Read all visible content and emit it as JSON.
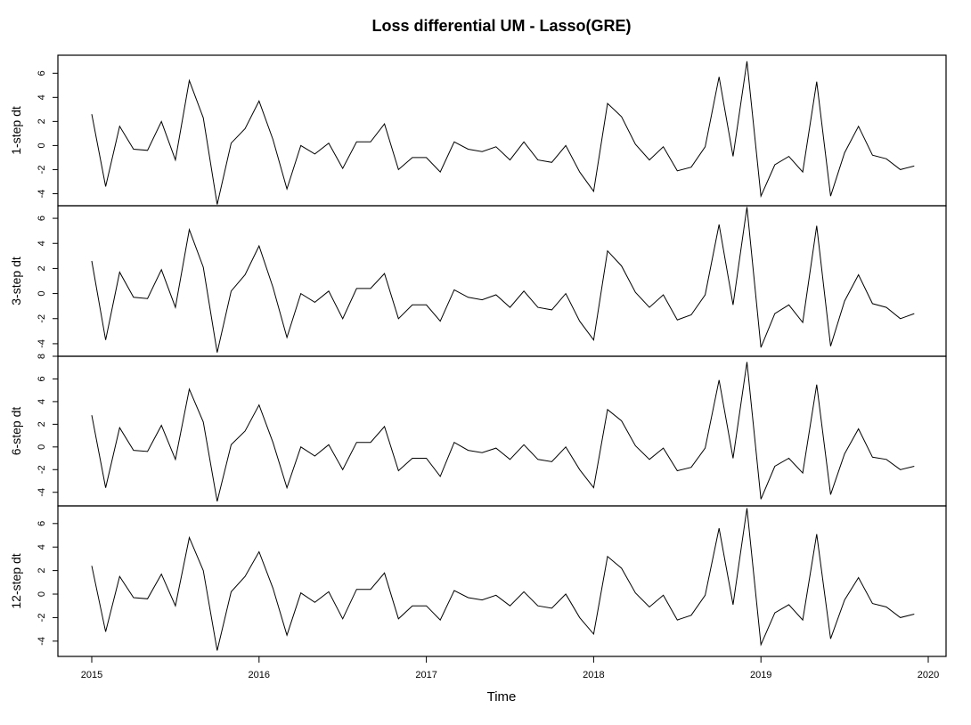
{
  "chart_data": {
    "type": "line",
    "title": "Loss differential UM - Lasso(GRE)",
    "xlabel": "Time",
    "x_start": 2015,
    "x_step": 0.08333333,
    "xlim": [
      2015,
      2020
    ],
    "x_ticks": [
      2015,
      2016,
      2017,
      2018,
      2019,
      2020
    ],
    "x_tick_labels": [
      "2015",
      "2016",
      "2017",
      "2018",
      "2019",
      "2020"
    ],
    "panels": [
      {
        "ylabel": "1-step dt",
        "ylim": [
          -5,
          7.5
        ],
        "y_ticks": [
          -4,
          -2,
          0,
          2,
          4,
          6
        ],
        "y_tick_labels": [
          "-4",
          "-2",
          "0",
          "2",
          "4",
          "6"
        ],
        "values": [
          2.6,
          -3.4,
          1.6,
          -0.3,
          -0.4,
          2.0,
          -1.2,
          5.4,
          2.3,
          -4.9,
          0.2,
          1.4,
          3.7,
          0.5,
          -3.6,
          0.0,
          -0.7,
          0.2,
          -1.9,
          0.3,
          0.3,
          1.8,
          -2.0,
          -1.0,
          -1.0,
          -2.2,
          0.3,
          -0.3,
          -0.5,
          -0.1,
          -1.2,
          0.3,
          -1.2,
          -1.4,
          0.0,
          -2.2,
          -3.8,
          3.5,
          2.4,
          0.1,
          -1.2,
          -0.1,
          -2.1,
          -1.8,
          -0.1,
          5.7,
          -0.9,
          7.0,
          -4.2,
          -1.6,
          -0.9,
          -2.2,
          5.3,
          -4.2,
          -0.6,
          1.6,
          -0.8,
          -1.1,
          -2.0,
          -1.7
        ]
      },
      {
        "ylabel": "3-step dt",
        "ylim": [
          -5,
          7
        ],
        "y_ticks": [
          -4,
          -2,
          0,
          2,
          4,
          6
        ],
        "y_tick_labels": [
          "-4",
          "-2",
          "0",
          "2",
          "4",
          "6"
        ],
        "values": [
          2.6,
          -3.7,
          1.7,
          -0.3,
          -0.4,
          1.9,
          -1.1,
          5.1,
          2.1,
          -4.7,
          0.2,
          1.5,
          3.8,
          0.5,
          -3.5,
          0.0,
          -0.7,
          0.2,
          -2.0,
          0.4,
          0.4,
          1.6,
          -2.0,
          -0.9,
          -0.9,
          -2.2,
          0.3,
          -0.3,
          -0.5,
          -0.1,
          -1.1,
          0.2,
          -1.1,
          -1.3,
          0.0,
          -2.2,
          -3.7,
          3.4,
          2.2,
          0.1,
          -1.1,
          -0.1,
          -2.1,
          -1.7,
          -0.1,
          5.5,
          -0.9,
          6.9,
          -4.3,
          -1.6,
          -0.9,
          -2.3,
          5.4,
          -4.2,
          -0.6,
          1.5,
          -0.8,
          -1.1,
          -2.0,
          -1.6
        ]
      },
      {
        "ylabel": "6-step dt",
        "ylim": [
          -5.2,
          8
        ],
        "y_ticks": [
          -4,
          -2,
          0,
          2,
          4,
          6,
          8
        ],
        "y_tick_labels": [
          "-4",
          "-2",
          "0",
          "2",
          "4",
          "6",
          "8"
        ],
        "values": [
          2.8,
          -3.6,
          1.7,
          -0.3,
          -0.4,
          1.9,
          -1.1,
          5.1,
          2.2,
          -4.8,
          0.2,
          1.4,
          3.7,
          0.4,
          -3.6,
          0.0,
          -0.8,
          0.2,
          -2.0,
          0.4,
          0.4,
          1.8,
          -2.1,
          -1.0,
          -1.0,
          -2.6,
          0.4,
          -0.3,
          -0.5,
          -0.1,
          -1.1,
          0.2,
          -1.1,
          -1.3,
          0.0,
          -2.0,
          -3.6,
          3.3,
          2.3,
          0.1,
          -1.1,
          -0.1,
          -2.1,
          -1.8,
          -0.1,
          5.9,
          -1.0,
          7.5,
          -4.6,
          -1.7,
          -1.0,
          -2.3,
          5.5,
          -4.2,
          -0.6,
          1.6,
          -0.9,
          -1.1,
          -2.0,
          -1.7
        ]
      },
      {
        "ylabel": "12-step dt",
        "ylim": [
          -5.3,
          7.5
        ],
        "y_ticks": [
          -4,
          -2,
          0,
          2,
          4,
          6
        ],
        "y_tick_labels": [
          "-4",
          "-2",
          "0",
          "2",
          "4",
          "6"
        ],
        "values": [
          2.4,
          -3.2,
          1.5,
          -0.3,
          -0.4,
          1.7,
          -1.0,
          4.8,
          2.0,
          -4.8,
          0.2,
          1.5,
          3.6,
          0.5,
          -3.5,
          0.1,
          -0.7,
          0.2,
          -2.1,
          0.4,
          0.4,
          1.8,
          -2.1,
          -1.0,
          -1.0,
          -2.2,
          0.3,
          -0.3,
          -0.5,
          -0.1,
          -1.0,
          0.2,
          -1.0,
          -1.2,
          0.0,
          -2.0,
          -3.4,
          3.2,
          2.2,
          0.1,
          -1.1,
          -0.1,
          -2.2,
          -1.8,
          -0.1,
          5.6,
          -0.9,
          7.3,
          -4.3,
          -1.6,
          -0.9,
          -2.2,
          5.1,
          -3.8,
          -0.5,
          1.4,
          -0.8,
          -1.1,
          -2.0,
          -1.7
        ]
      }
    ]
  }
}
